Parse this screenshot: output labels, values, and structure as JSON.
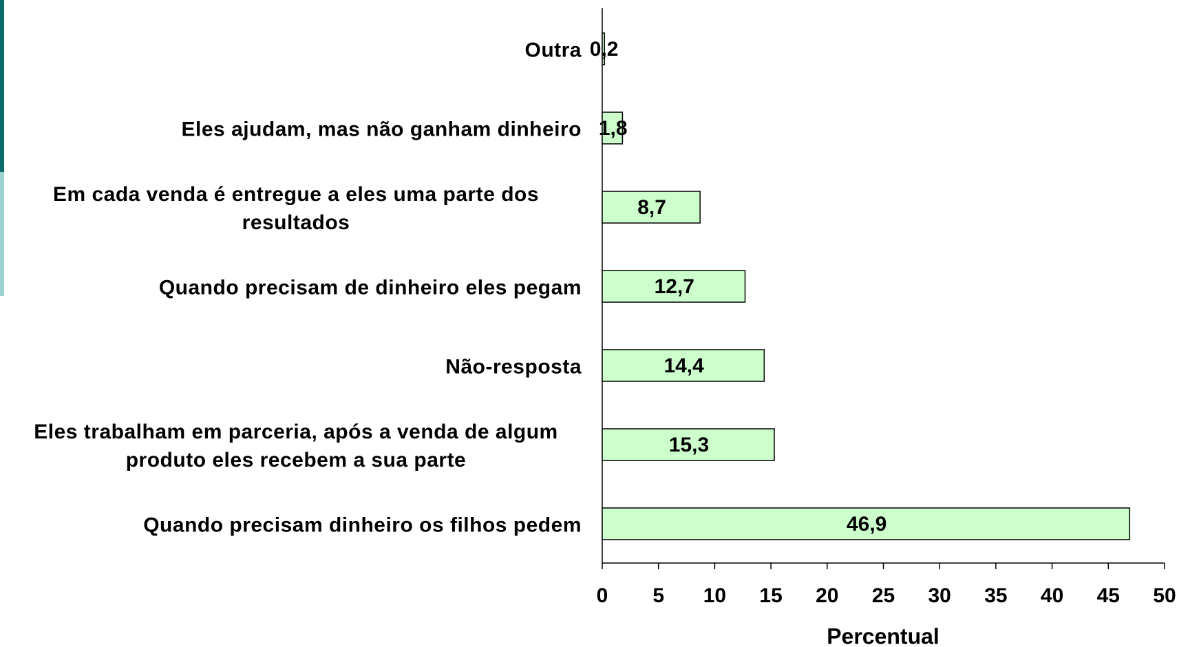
{
  "chart_data": {
    "type": "bar",
    "orientation": "horizontal",
    "categories": [
      "Outra",
      "Eles ajudam, mas não ganham dinheiro",
      "Em cada venda é entregue a eles uma parte dos resultados",
      "Quando precisam de dinheiro eles pegam",
      "Não-resposta",
      "Eles trabalham em parceria, após a venda de algum produto eles recebem a sua parte",
      "Quando precisam dinheiro os filhos pedem"
    ],
    "values": [
      0.2,
      1.8,
      8.7,
      12.7,
      14.4,
      15.3,
      46.9
    ],
    "value_labels": [
      "0,2",
      "1,8",
      "8,7",
      "12,7",
      "14,4",
      "15,3",
      "46,9"
    ],
    "color": "#ccffcc",
    "xlim": [
      0,
      50
    ],
    "xticks": [
      0,
      5,
      10,
      15,
      20,
      25,
      30,
      35,
      40,
      45,
      50
    ],
    "xlabel": "Percentual"
  }
}
